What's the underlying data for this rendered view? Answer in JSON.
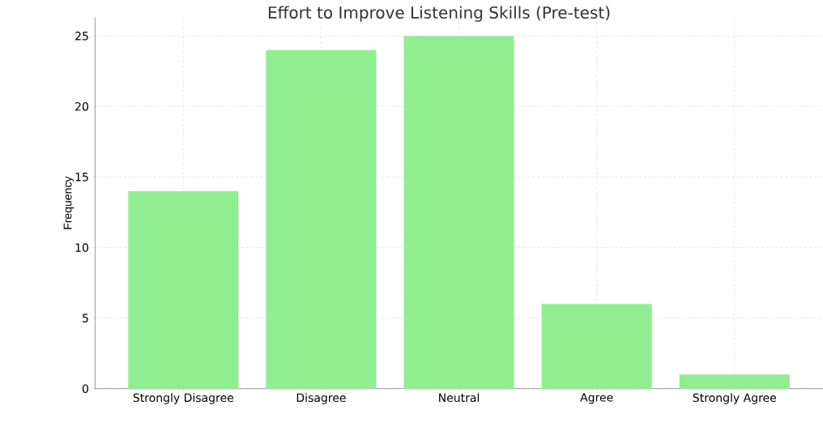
{
  "chart_data": {
    "type": "bar",
    "title": "Effort to Improve Listening Skills (Pre-test)",
    "ylabel": "Frequency",
    "categories": [
      "Strongly Disagree",
      "Disagree",
      "Neutral",
      "Agree",
      "Strongly Agree"
    ],
    "values": [
      14,
      24,
      25,
      6,
      1
    ],
    "color": "#90ee90",
    "ylim": [
      0,
      26.3
    ],
    "yticks": [
      0,
      5,
      10,
      15,
      20,
      25
    ],
    "grid": true
  }
}
